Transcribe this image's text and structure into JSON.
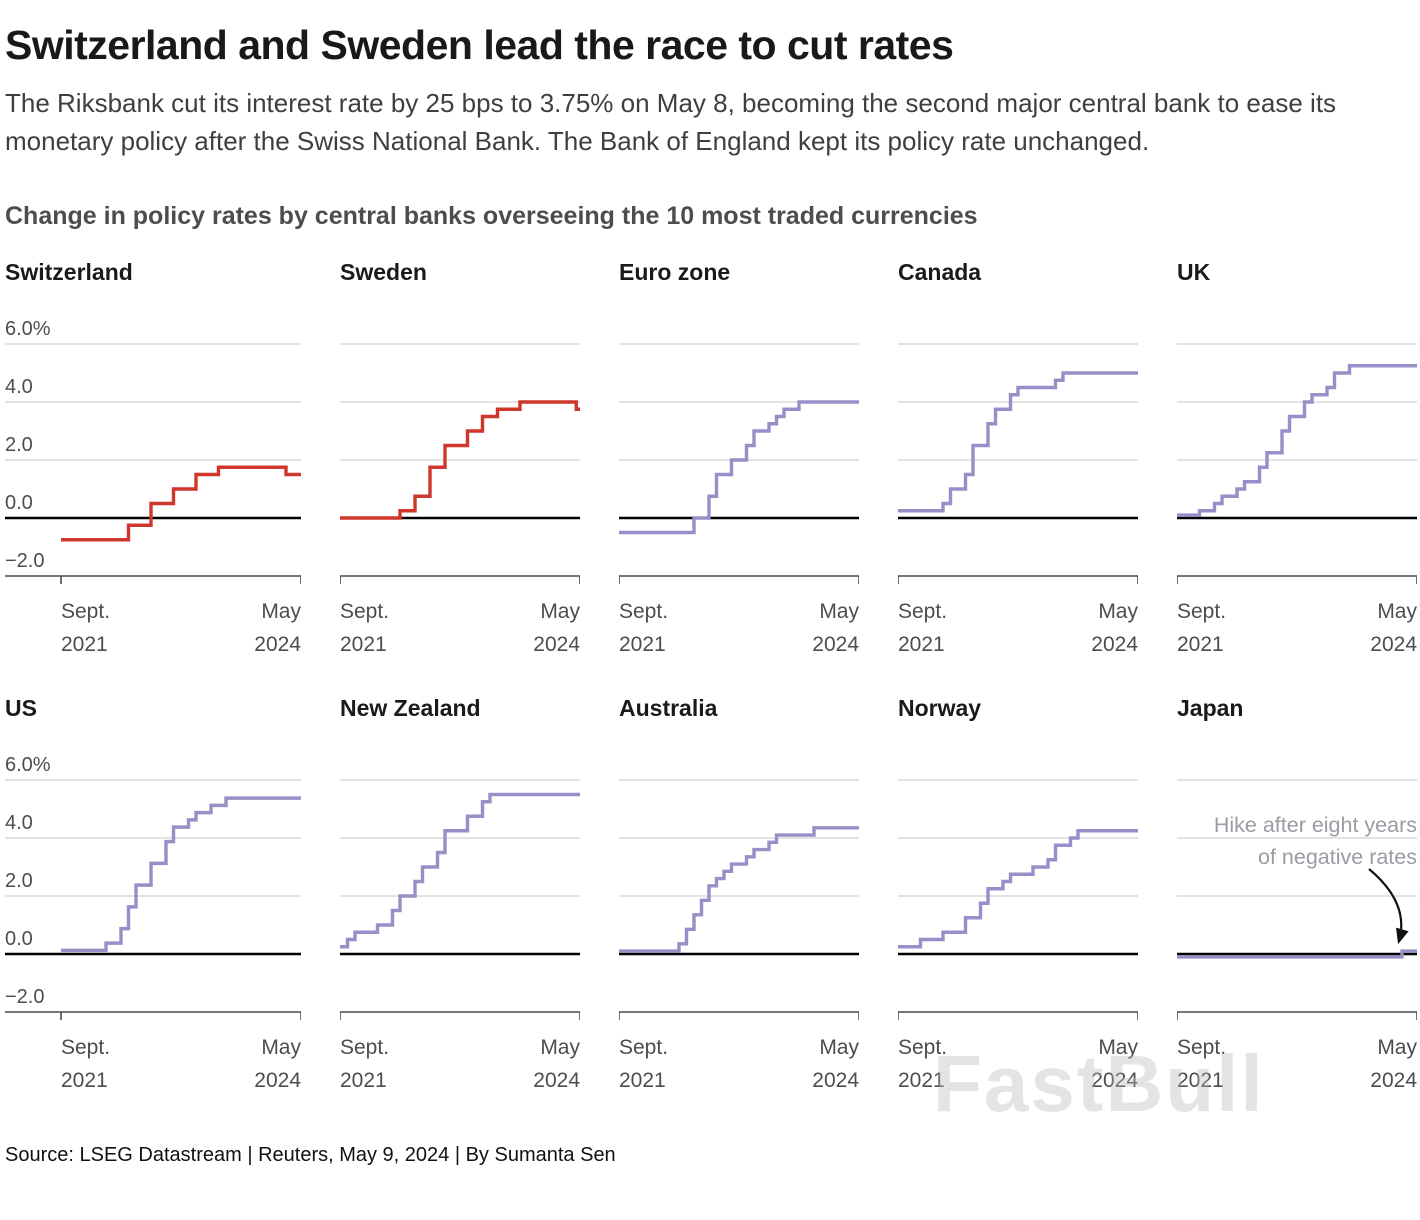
{
  "page": {
    "title": "Switzerland and Sweden lead the race to cut rates",
    "subtitle": "The Riksbank cut its interest rate by 25 bps to 3.75% on May 8, becoming the second major central bank to ease its monetary policy after the Swiss National Bank. The Bank of England kept its policy rate unchanged.",
    "section_heading": "Change in policy rates by central banks overseeing the 10 most traded currencies",
    "source": "Source: LSEG Datastream | Reuters, May 9, 2024 | By Sumanta Sen",
    "watermark": "FastBull"
  },
  "colors": {
    "cut_line": "#cf372c",
    "hold_line": "#9590c8",
    "grid_line": "#d2d2d2",
    "zero_line": "#000000",
    "axis_line": "#4a4a4a",
    "axis_text": "#4d4d4d",
    "annotation_text": "#9b9ba4"
  },
  "chart_data": {
    "type": "line",
    "subtype": "step",
    "unit": "percent",
    "x_domain": [
      "Sept. 2021",
      "May 2024"
    ],
    "x_range_months": [
      0,
      32
    ],
    "x_tick_labels": [
      [
        "Sept.",
        "2021"
      ],
      [
        "May",
        "2024"
      ]
    ],
    "y_ticks": [
      6.0,
      4.0,
      2.0,
      0.0,
      -2.0
    ],
    "y_tick_labels": [
      "6.0%",
      "4.0",
      "2.0",
      "0.0",
      "−2.0"
    ],
    "ylim": [
      -2.0,
      6.6
    ],
    "grid": true,
    "charts": [
      {
        "name": "Switzerland",
        "color_key": "cut_line",
        "steps": [
          [
            0,
            -0.75
          ],
          [
            9,
            -0.25
          ],
          [
            12,
            0.5
          ],
          [
            15,
            1.0
          ],
          [
            18,
            1.5
          ],
          [
            21,
            1.75
          ],
          [
            30,
            1.5
          ]
        ]
      },
      {
        "name": "Sweden",
        "color_key": "cut_line",
        "steps": [
          [
            0,
            0.0
          ],
          [
            8,
            0.25
          ],
          [
            10,
            0.75
          ],
          [
            12,
            1.75
          ],
          [
            14,
            2.5
          ],
          [
            17,
            3.0
          ],
          [
            19,
            3.5
          ],
          [
            21,
            3.75
          ],
          [
            24,
            4.0
          ],
          [
            31.5,
            3.75
          ]
        ]
      },
      {
        "name": "Euro zone",
        "color_key": "hold_line",
        "steps": [
          [
            0,
            -0.5
          ],
          [
            10,
            0.0
          ],
          [
            12,
            0.75
          ],
          [
            13,
            1.5
          ],
          [
            15,
            2.0
          ],
          [
            17,
            2.5
          ],
          [
            18,
            3.0
          ],
          [
            20,
            3.25
          ],
          [
            21,
            3.5
          ],
          [
            22,
            3.75
          ],
          [
            24,
            4.0
          ]
        ]
      },
      {
        "name": "Canada",
        "color_key": "hold_line",
        "steps": [
          [
            0,
            0.25
          ],
          [
            6,
            0.5
          ],
          [
            7,
            1.0
          ],
          [
            9,
            1.5
          ],
          [
            10,
            2.5
          ],
          [
            12,
            3.25
          ],
          [
            13,
            3.75
          ],
          [
            15,
            4.25
          ],
          [
            16,
            4.5
          ],
          [
            21,
            4.75
          ],
          [
            22,
            5.0
          ]
        ]
      },
      {
        "name": "UK",
        "color_key": "hold_line",
        "steps": [
          [
            0,
            0.1
          ],
          [
            3,
            0.25
          ],
          [
            5,
            0.5
          ],
          [
            6,
            0.75
          ],
          [
            8,
            1.0
          ],
          [
            9,
            1.25
          ],
          [
            11,
            1.75
          ],
          [
            12,
            2.25
          ],
          [
            14,
            3.0
          ],
          [
            15,
            3.5
          ],
          [
            17,
            4.0
          ],
          [
            18,
            4.25
          ],
          [
            20,
            4.5
          ],
          [
            21,
            5.0
          ],
          [
            23,
            5.25
          ]
        ]
      },
      {
        "name": "US",
        "color_key": "hold_line",
        "steps": [
          [
            0,
            0.125
          ],
          [
            6,
            0.375
          ],
          [
            8,
            0.875
          ],
          [
            9,
            1.625
          ],
          [
            10,
            2.375
          ],
          [
            12,
            3.125
          ],
          [
            14,
            3.875
          ],
          [
            15,
            4.375
          ],
          [
            17,
            4.625
          ],
          [
            18,
            4.875
          ],
          [
            20,
            5.125
          ],
          [
            22,
            5.375
          ]
        ]
      },
      {
        "name": "New Zealand",
        "color_key": "hold_line",
        "steps": [
          [
            0,
            0.25
          ],
          [
            1,
            0.5
          ],
          [
            2,
            0.75
          ],
          [
            5,
            1.0
          ],
          [
            7,
            1.5
          ],
          [
            8,
            2.0
          ],
          [
            10,
            2.5
          ],
          [
            11,
            3.0
          ],
          [
            13,
            3.5
          ],
          [
            14,
            4.25
          ],
          [
            17,
            4.75
          ],
          [
            19,
            5.25
          ],
          [
            20,
            5.5
          ]
        ]
      },
      {
        "name": "Australia",
        "color_key": "hold_line",
        "steps": [
          [
            0,
            0.1
          ],
          [
            8,
            0.35
          ],
          [
            9,
            0.85
          ],
          [
            10,
            1.35
          ],
          [
            11,
            1.85
          ],
          [
            12,
            2.35
          ],
          [
            13,
            2.6
          ],
          [
            14,
            2.85
          ],
          [
            15,
            3.1
          ],
          [
            17,
            3.35
          ],
          [
            18,
            3.6
          ],
          [
            20,
            3.85
          ],
          [
            21,
            4.1
          ],
          [
            26,
            4.35
          ]
        ]
      },
      {
        "name": "Norway",
        "color_key": "hold_line",
        "steps": [
          [
            0,
            0.25
          ],
          [
            3,
            0.5
          ],
          [
            6,
            0.75
          ],
          [
            9,
            1.25
          ],
          [
            11,
            1.75
          ],
          [
            12,
            2.25
          ],
          [
            14,
            2.5
          ],
          [
            15,
            2.75
          ],
          [
            18,
            3.0
          ],
          [
            20,
            3.25
          ],
          [
            21,
            3.75
          ],
          [
            23,
            4.0
          ],
          [
            24,
            4.25
          ]
        ]
      },
      {
        "name": "Japan",
        "color_key": "hold_line",
        "steps": [
          [
            0,
            -0.1
          ],
          [
            30,
            0.1
          ]
        ],
        "annotation": {
          "lines": [
            "Hike after eight years",
            "of negative rates"
          ]
        }
      }
    ]
  }
}
